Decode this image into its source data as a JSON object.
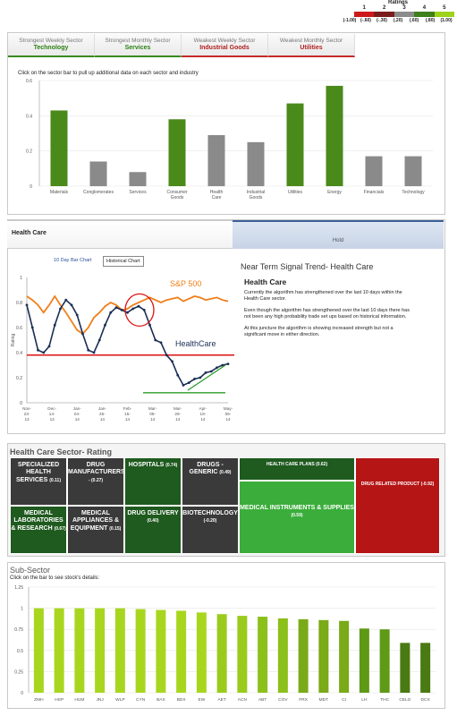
{
  "ratings": {
    "title": "Ratings",
    "nums": [
      "1",
      "2",
      "3",
      "4",
      "5"
    ],
    "labels": [
      "(-1.00)",
      "(-.60)",
      "(-.30)",
      "(.20)",
      "(.60)",
      "(.80)",
      "(1.00)"
    ],
    "colors": [
      "#cc1a1a",
      "#7a1c1c",
      "#8c8c8c",
      "#3f7f1c",
      "#9dd31a"
    ]
  },
  "tabs": [
    {
      "title": "Strongest Weekly Sector",
      "value": "Technology",
      "color": "#2a7f12"
    },
    {
      "title": "Strongest Monthly Sector",
      "value": "Services",
      "color": "#2a7f12"
    },
    {
      "title": "Weakest Weekly Sector",
      "value": "Industrial Goods",
      "color": "#b01e1e"
    },
    {
      "title": "Weakest Monthly Sector",
      "value": "Utilities",
      "color": "#b01e1e"
    }
  ],
  "sector_instruction": "Click on the sector bar to pull up additional data on each sector and industry",
  "health_care_header": "Health Care",
  "hold_label": "Hold",
  "chart_buttons": [
    "10 Day Bar Chart",
    "Historical Chart"
  ],
  "signal": {
    "title": "Near Term Signal Trend- Health Care",
    "subtitle": "Health Care",
    "paragraphs": [
      "Currently the algorithm has strengthened over the last 10 days within the Health Care sector.",
      "Even though the algorithm has strengthened over the last 10 days there has not been any high probability trade set ups based on historical information.",
      "At this juncture the algorithm is showing increased strength but not a significant move in either direction."
    ]
  },
  "sector_rating_title": "Health Care Sector- Rating",
  "tiles": [
    {
      "name": "SPECIALIZED HEALTH SERVICES",
      "rating": "(0.11)",
      "color": "#3a3a3a"
    },
    {
      "name": "DRUG MANUFACTURERS",
      "rating": "- (0.27)",
      "color": "#3a3a3a"
    },
    {
      "name": "HOSPITALS",
      "rating": "(0.74)",
      "color": "#1f5a1f"
    },
    {
      "name": "DRUGS - GENERIC",
      "rating": "(0.49)",
      "color": "#3a3a3a"
    },
    {
      "name": "HEALTH CARE PLANS",
      "rating": "(0.62)",
      "color": "#1f5a1f"
    },
    {
      "name": "DRUG RELATED PRODUCT",
      "rating": "(-0.92)",
      "color": "#b51515"
    },
    {
      "name": "MEDICAL INSTRUMENTS & SUPPLIES",
      "rating": "(0.59)",
      "color": "#3bad3b"
    },
    {
      "name": "MEDICAL LABORATORIES & RESEARCH",
      "rating": "(0.67)",
      "color": "#1f5a1f"
    },
    {
      "name": "MEDICAL APPLIANCES & EQUIPMENT",
      "rating": "(0.15)",
      "color": "#3a3a3a"
    },
    {
      "name": "DRUG DELIVERY",
      "rating": "(0.40)",
      "color": "#1f5a1f"
    },
    {
      "name": "BIOTECHNOLOGY",
      "rating": "(-0.20)",
      "color": "#3a3a3a"
    }
  ],
  "subsector_title": "Sub-Sector",
  "subsector_instruction": "Click on the bar to see stock's details:",
  "chart_data": [
    {
      "type": "bar",
      "categories": [
        "Materials",
        "Conglomerates",
        "Services",
        "Consumer Goods",
        "Health Care",
        "Industrial Goods",
        "Utilities",
        "Energy",
        "Financials",
        "Technology"
      ],
      "values": [
        0.43,
        0.14,
        0.08,
        0.38,
        0.29,
        0.25,
        0.47,
        0.57,
        0.17,
        0.17
      ],
      "colors": [
        "#4a8a1a",
        "#8a8a8a",
        "#8a8a8a",
        "#4a8a1a",
        "#8a8a8a",
        "#8a8a8a",
        "#4a8a1a",
        "#4a8a1a",
        "#8a8a8a",
        "#8a8a8a"
      ],
      "yticks": [
        "0",
        "0.2",
        "0.4",
        "0.6"
      ],
      "ylim": [
        0,
        0.6
      ]
    },
    {
      "type": "line",
      "x_labels": [
        "Nov-23-13",
        "Dec-14-13",
        "Jan-04-14",
        "Jan-25-14",
        "Feb-15-14",
        "Mar-08-14",
        "Mar-29-14",
        "Apr-19-14",
        "May-06-14"
      ],
      "yticks": [
        "0",
        "0.2",
        "0.4",
        "0.6",
        "0.8",
        "1"
      ],
      "ylabel": "Rating",
      "ylim": [
        0,
        1
      ],
      "series": [
        {
          "name": "S&P 500",
          "color": "#f07f1a",
          "values": [
            0.85,
            0.82,
            0.78,
            0.72,
            0.78,
            0.85,
            0.78,
            0.72,
            0.65,
            0.58,
            0.55,
            0.6,
            0.68,
            0.72,
            0.77,
            0.8,
            0.78,
            0.74,
            0.75,
            0.78,
            0.8,
            0.82,
            0.84,
            0.82,
            0.8,
            0.82,
            0.83,
            0.84,
            0.81,
            0.83,
            0.85,
            0.84,
            0.82,
            0.83,
            0.84,
            0.82,
            0.81
          ]
        },
        {
          "name": "HealthCare",
          "color": "#1a2e55",
          "values": [
            0.78,
            0.6,
            0.42,
            0.4,
            0.45,
            0.62,
            0.75,
            0.82,
            0.78,
            0.7,
            0.55,
            0.42,
            0.4,
            0.5,
            0.62,
            0.72,
            0.76,
            0.74,
            0.72,
            0.75,
            0.77,
            0.74,
            0.62,
            0.5,
            0.48,
            0.38,
            0.33,
            0.22,
            0.14,
            0.16,
            0.19,
            0.2,
            0.24,
            0.25,
            0.28,
            0.3,
            0.31
          ]
        }
      ],
      "hline": 0.38
    },
    {
      "type": "bar",
      "categories": [
        "ZMH",
        "HSP",
        "HUM",
        "JNJ",
        "WLP",
        "CYN",
        "BAX",
        "BDX",
        "EW",
        "AET",
        "ACN",
        "ABT",
        "COV",
        "FRX",
        "MDT",
        "CI",
        "LH",
        "THC",
        "CELG",
        "DCX"
      ],
      "values": [
        1.0,
        1.0,
        1.0,
        1.0,
        1.0,
        0.99,
        0.98,
        0.97,
        0.95,
        0.93,
        0.91,
        0.9,
        0.88,
        0.87,
        0.86,
        0.85,
        0.76,
        0.75,
        0.59,
        0.59
      ],
      "colors": [
        "#a8d61f",
        "#a8d61f",
        "#a8d61f",
        "#a8d61f",
        "#a8d61f",
        "#a8d61f",
        "#a8d61f",
        "#a8d61f",
        "#a8d61f",
        "#9acb1c",
        "#9acb1c",
        "#8cc01a",
        "#8cc01a",
        "#7aaa18",
        "#7aaa18",
        "#7aaa18",
        "#5f9a16",
        "#5f9a16",
        "#4a7a12",
        "#4a7a12"
      ],
      "yticks": [
        "0",
        "0.25",
        "0.5",
        "0.75",
        "1",
        "1.25"
      ],
      "ylim": [
        0,
        1.25
      ]
    }
  ]
}
